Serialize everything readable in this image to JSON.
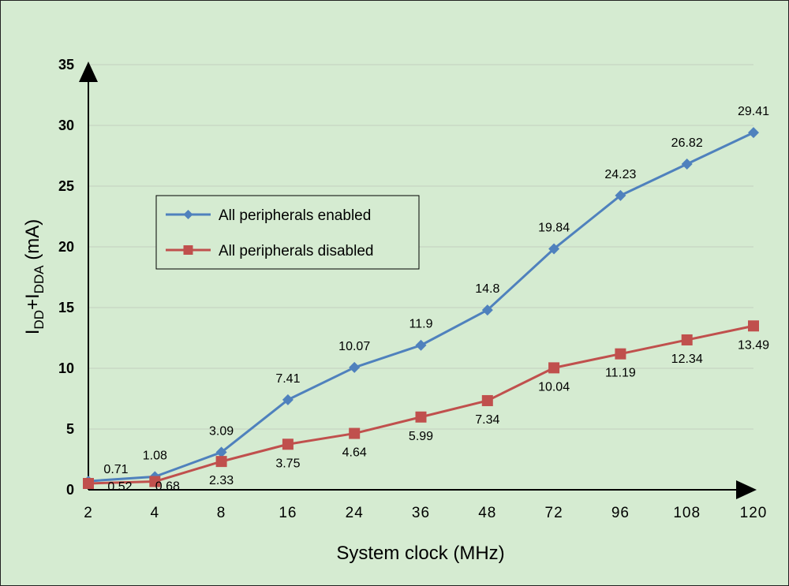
{
  "chart_data": {
    "type": "line",
    "categories": [
      "2",
      "4",
      "8",
      "16",
      "24",
      "36",
      "48",
      "72",
      "96",
      "108",
      "120"
    ],
    "series": [
      {
        "name": "All peripherals enabled",
        "color": "#4f81bd",
        "marker": "diamond",
        "values": [
          0.71,
          1.08,
          3.09,
          7.41,
          10.07,
          11.9,
          14.8,
          19.84,
          24.23,
          26.82,
          29.41
        ],
        "labels": [
          "0.71",
          "1.08",
          "3.09",
          "7.41",
          "10.07",
          "11.9",
          "14.8",
          "19.84",
          "24.23",
          "26.82",
          "29.41"
        ]
      },
      {
        "name": "All peripherals disabled",
        "color": "#c0504d",
        "marker": "square",
        "values": [
          0.52,
          0.68,
          2.33,
          3.75,
          4.64,
          5.99,
          7.34,
          10.04,
          11.19,
          12.34,
          13.49
        ],
        "labels": [
          "0.52",
          "0.68",
          "2.33",
          "3.75",
          "4.64",
          "5.99",
          "7.34",
          "10.04",
          "11.19",
          "12.34",
          "13.49"
        ]
      }
    ],
    "xlabel": "System clock (MHz)",
    "ylabel": {
      "main1": "I",
      "sub1": "DD",
      "plus": "+I",
      "sub2": "DDA",
      "unit": " (mA)"
    },
    "ylim": [
      0,
      35
    ],
    "yticks": [
      "0",
      "5",
      "10",
      "15",
      "20",
      "25",
      "30",
      "35"
    ],
    "grid": true,
    "legend_position": "left-middle"
  }
}
